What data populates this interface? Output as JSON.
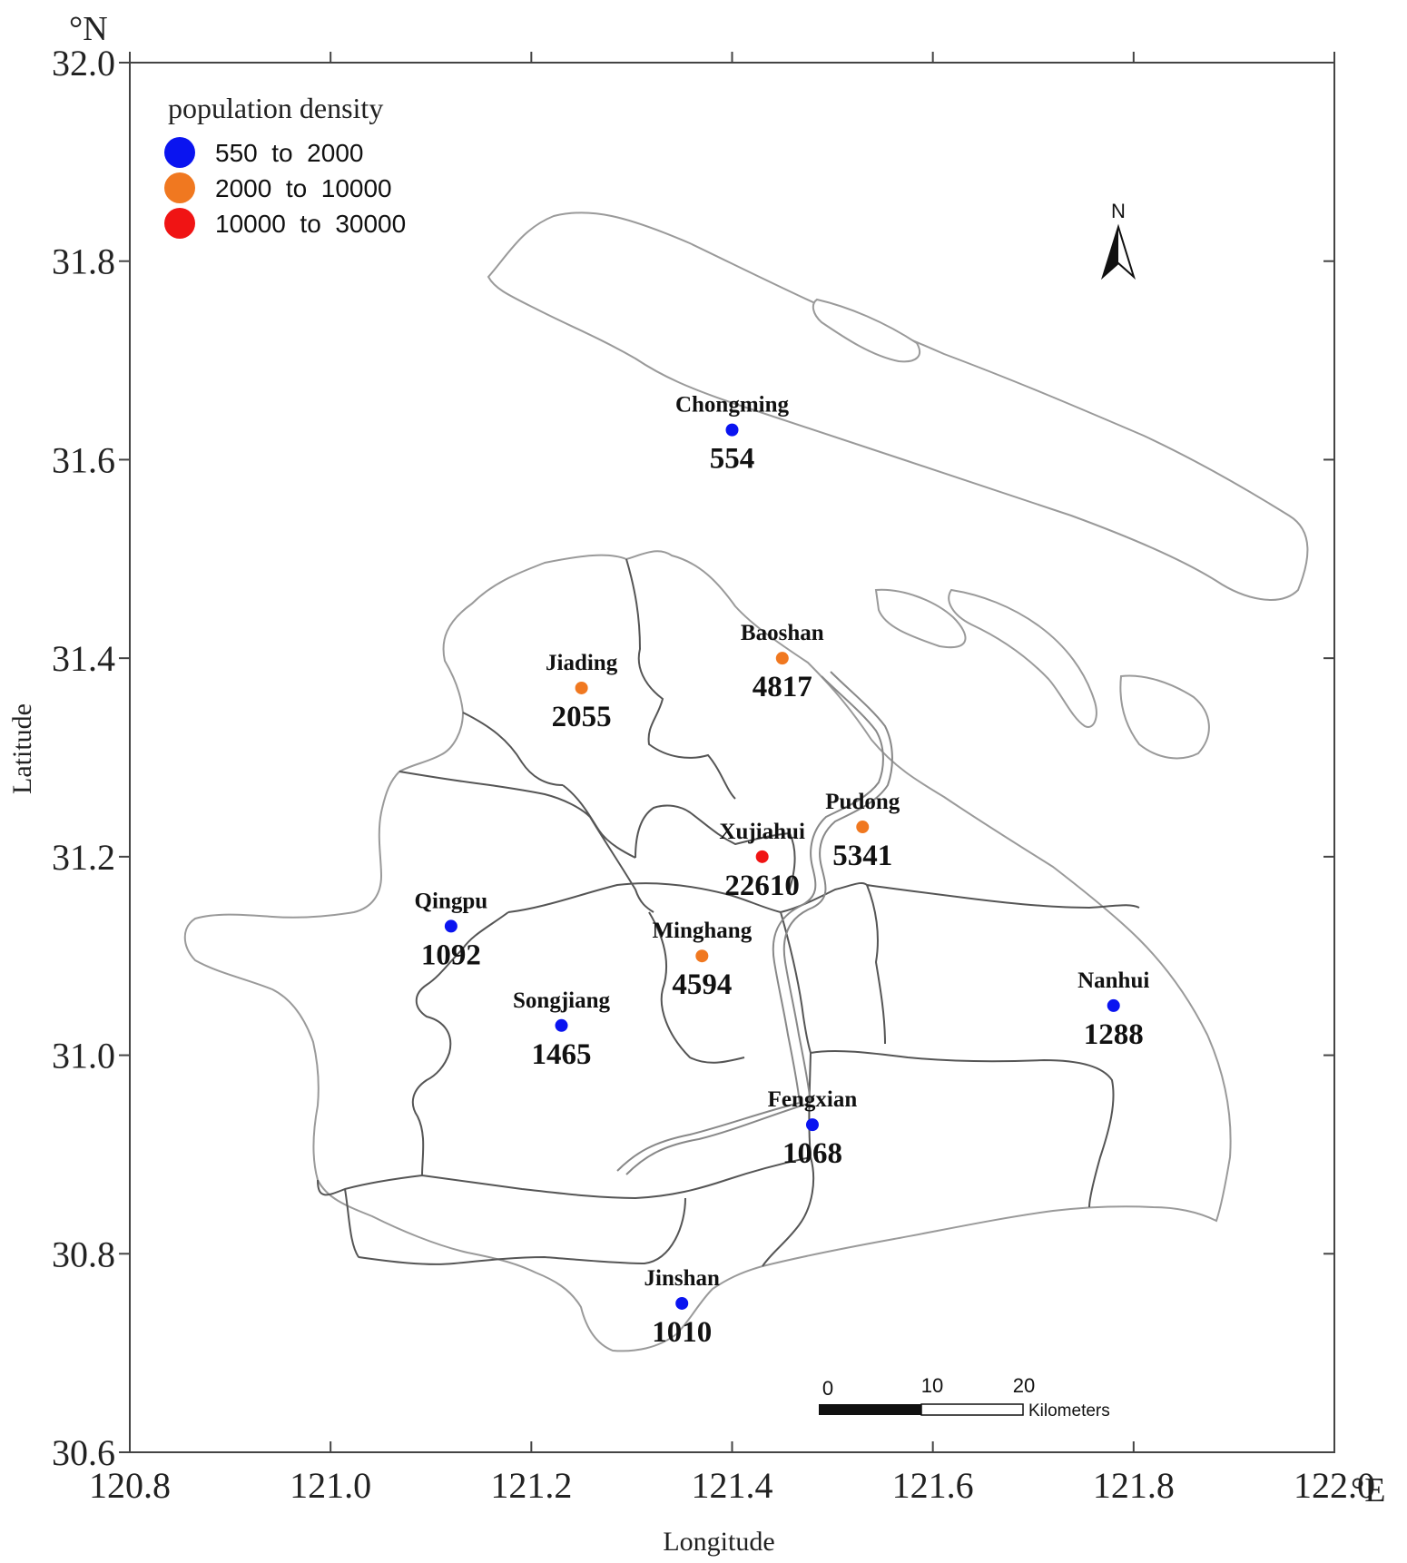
{
  "map": {
    "lat_unit": "°N",
    "lon_unit": "°E",
    "xlabel": "Longitude",
    "ylabel": "Latitude",
    "x_ticks": [
      "120.8",
      "121.0",
      "121.2",
      "121.4",
      "121.6",
      "121.8",
      "122.0"
    ],
    "y_ticks": [
      "32.0",
      "31.8",
      "31.6",
      "31.4",
      "31.2",
      "31.0",
      "30.8",
      "30.6"
    ],
    "north_arrow_label": "N",
    "scale_bar": {
      "labels": [
        "0",
        "10",
        "20"
      ],
      "unit": "Kilometers"
    }
  },
  "legend": {
    "title": "population density",
    "items": [
      {
        "label": "550  to  2000",
        "color": "#0a14f0"
      },
      {
        "label": "2000  to  10000",
        "color": "#f07820"
      },
      {
        "label": "10000  to  30000",
        "color": "#f01414"
      }
    ]
  },
  "chart_data": {
    "type": "scatter",
    "xlabel": "Longitude",
    "ylabel": "Latitude",
    "xlim": [
      120.8,
      122.0
    ],
    "ylim": [
      30.6,
      32.0
    ],
    "grid": false,
    "legend_placement": "top-left",
    "points": [
      {
        "name": "Chongming",
        "lon": 121.4,
        "lat": 31.63,
        "value": "554",
        "class": 0
      },
      {
        "name": "Jiading",
        "lon": 121.25,
        "lat": 31.37,
        "value": "2055",
        "class": 1
      },
      {
        "name": "Baoshan",
        "lon": 121.45,
        "lat": 31.4,
        "value": "4817",
        "class": 1
      },
      {
        "name": "Pudong",
        "lon": 121.53,
        "lat": 31.23,
        "value": "5341",
        "class": 1
      },
      {
        "name": "Xujiahui",
        "lon": 121.43,
        "lat": 31.2,
        "value": "22610",
        "class": 2
      },
      {
        "name": "Qingpu",
        "lon": 121.12,
        "lat": 31.13,
        "value": "1092",
        "class": 0
      },
      {
        "name": "Minghang",
        "lon": 121.37,
        "lat": 31.1,
        "value": "4594",
        "class": 1
      },
      {
        "name": "Songjiang",
        "lon": 121.23,
        "lat": 31.03,
        "value": "1465",
        "class": 0
      },
      {
        "name": "Nanhui",
        "lon": 121.78,
        "lat": 31.05,
        "value": "1288",
        "class": 0
      },
      {
        "name": "Fengxian",
        "lon": 121.48,
        "lat": 30.93,
        "value": "1068",
        "class": 0
      },
      {
        "name": "Jinshan",
        "lon": 121.35,
        "lat": 30.75,
        "value": "1010",
        "class": 0
      }
    ]
  }
}
